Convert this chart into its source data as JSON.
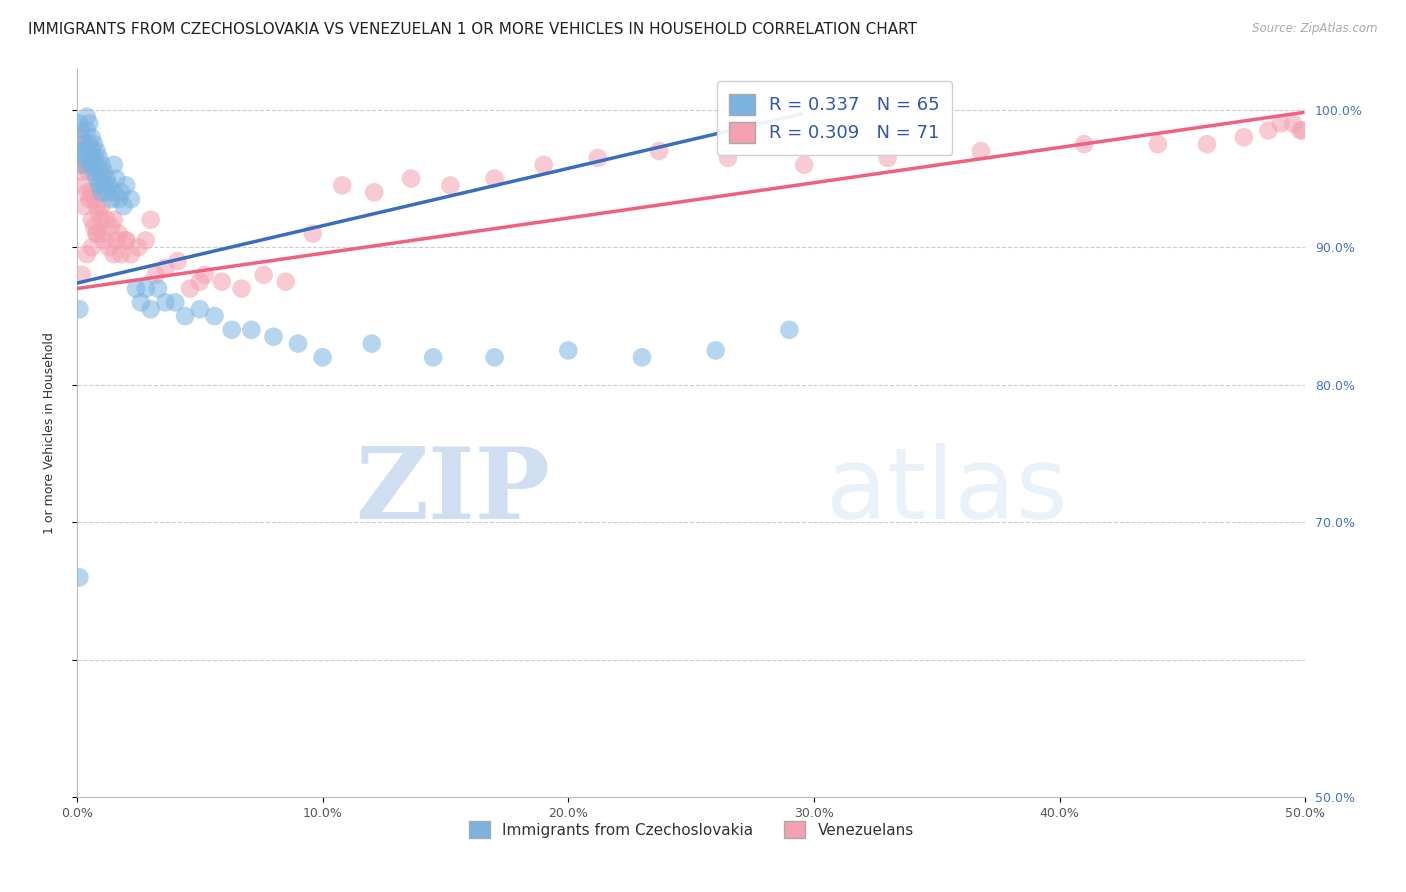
{
  "title": "IMMIGRANTS FROM CZECHOSLOVAKIA VS VENEZUELAN 1 OR MORE VEHICLES IN HOUSEHOLD CORRELATION CHART",
  "source": "Source: ZipAtlas.com",
  "ylabel": "1 or more Vehicles in Household",
  "xlim": [
    0.0,
    0.5
  ],
  "ylim": [
    0.5,
    1.03
  ],
  "xtick_labels": [
    "0.0%",
    "10.0%",
    "20.0%",
    "30.0%",
    "40.0%",
    "50.0%"
  ],
  "xtick_values": [
    0.0,
    0.1,
    0.2,
    0.3,
    0.4,
    0.5
  ],
  "ytick_labels": [
    "100.0%",
    "90.0%",
    "80.0%",
    "70.0%",
    "50.0%"
  ],
  "ytick_values": [
    1.0,
    0.9,
    0.8,
    0.7,
    0.5
  ],
  "blue_R": 0.337,
  "blue_N": 65,
  "pink_R": 0.309,
  "pink_N": 71,
  "blue_color": "#7ab3e0",
  "pink_color": "#f4a0b0",
  "blue_line_color": "#3a6ebd",
  "pink_line_color": "#f06080",
  "title_fontsize": 11,
  "axis_label_fontsize": 9,
  "tick_label_fontsize": 9,
  "legend_fontsize": 13,
  "watermark_zip": "ZIP",
  "watermark_atlas": "atlas",
  "blue_scatter_x": [
    0.001,
    0.001,
    0.002,
    0.002,
    0.003,
    0.003,
    0.004,
    0.004,
    0.004,
    0.005,
    0.005,
    0.005,
    0.006,
    0.006,
    0.006,
    0.007,
    0.007,
    0.007,
    0.008,
    0.008,
    0.008,
    0.009,
    0.009,
    0.009,
    0.01,
    0.01,
    0.01,
    0.011,
    0.011,
    0.012,
    0.012,
    0.013,
    0.014,
    0.015,
    0.015,
    0.016,
    0.017,
    0.018,
    0.019,
    0.02,
    0.022,
    0.024,
    0.026,
    0.028,
    0.03,
    0.033,
    0.036,
    0.04,
    0.044,
    0.05,
    0.056,
    0.063,
    0.071,
    0.08,
    0.09,
    0.1,
    0.12,
    0.145,
    0.17,
    0.2,
    0.23,
    0.26,
    0.29,
    0.001,
    0.001
  ],
  "blue_scatter_y": [
    0.99,
    0.97,
    0.985,
    0.96,
    0.975,
    0.965,
    0.995,
    0.985,
    0.97,
    0.99,
    0.975,
    0.965,
    0.98,
    0.97,
    0.96,
    0.975,
    0.965,
    0.955,
    0.97,
    0.96,
    0.95,
    0.965,
    0.955,
    0.945,
    0.96,
    0.95,
    0.94,
    0.955,
    0.945,
    0.95,
    0.94,
    0.945,
    0.935,
    0.96,
    0.94,
    0.95,
    0.935,
    0.94,
    0.93,
    0.945,
    0.935,
    0.87,
    0.86,
    0.87,
    0.855,
    0.87,
    0.86,
    0.86,
    0.85,
    0.855,
    0.85,
    0.84,
    0.84,
    0.835,
    0.83,
    0.82,
    0.83,
    0.82,
    0.82,
    0.825,
    0.82,
    0.825,
    0.84,
    0.855,
    0.66
  ],
  "pink_scatter_x": [
    0.001,
    0.001,
    0.002,
    0.002,
    0.003,
    0.003,
    0.004,
    0.004,
    0.005,
    0.005,
    0.006,
    0.006,
    0.007,
    0.007,
    0.008,
    0.008,
    0.009,
    0.01,
    0.01,
    0.011,
    0.012,
    0.013,
    0.014,
    0.015,
    0.016,
    0.017,
    0.018,
    0.02,
    0.022,
    0.025,
    0.028,
    0.032,
    0.036,
    0.041,
    0.046,
    0.052,
    0.059,
    0.067,
    0.076,
    0.085,
    0.096,
    0.108,
    0.121,
    0.136,
    0.152,
    0.17,
    0.19,
    0.212,
    0.237,
    0.265,
    0.296,
    0.33,
    0.368,
    0.41,
    0.44,
    0.46,
    0.475,
    0.485,
    0.49,
    0.495,
    0.498,
    0.499,
    0.002,
    0.004,
    0.006,
    0.008,
    0.01,
    0.015,
    0.02,
    0.03,
    0.05
  ],
  "pink_scatter_y": [
    0.98,
    0.96,
    0.975,
    0.955,
    0.945,
    0.93,
    0.96,
    0.94,
    0.955,
    0.935,
    0.94,
    0.92,
    0.935,
    0.915,
    0.93,
    0.91,
    0.925,
    0.93,
    0.91,
    0.905,
    0.92,
    0.9,
    0.915,
    0.92,
    0.905,
    0.91,
    0.895,
    0.905,
    0.895,
    0.9,
    0.905,
    0.88,
    0.885,
    0.89,
    0.87,
    0.88,
    0.875,
    0.87,
    0.88,
    0.875,
    0.91,
    0.945,
    0.94,
    0.95,
    0.945,
    0.95,
    0.96,
    0.965,
    0.97,
    0.965,
    0.96,
    0.965,
    0.97,
    0.975,
    0.975,
    0.975,
    0.98,
    0.985,
    0.99,
    0.99,
    0.985,
    0.985,
    0.88,
    0.895,
    0.9,
    0.91,
    0.92,
    0.895,
    0.905,
    0.92,
    0.875
  ],
  "blue_line_x0": 0.0,
  "blue_line_x1": 0.295,
  "blue_line_y0": 0.874,
  "blue_line_y1": 0.997,
  "pink_line_x0": 0.0,
  "pink_line_x1": 0.499,
  "pink_line_y0": 0.87,
  "pink_line_y1": 0.998
}
